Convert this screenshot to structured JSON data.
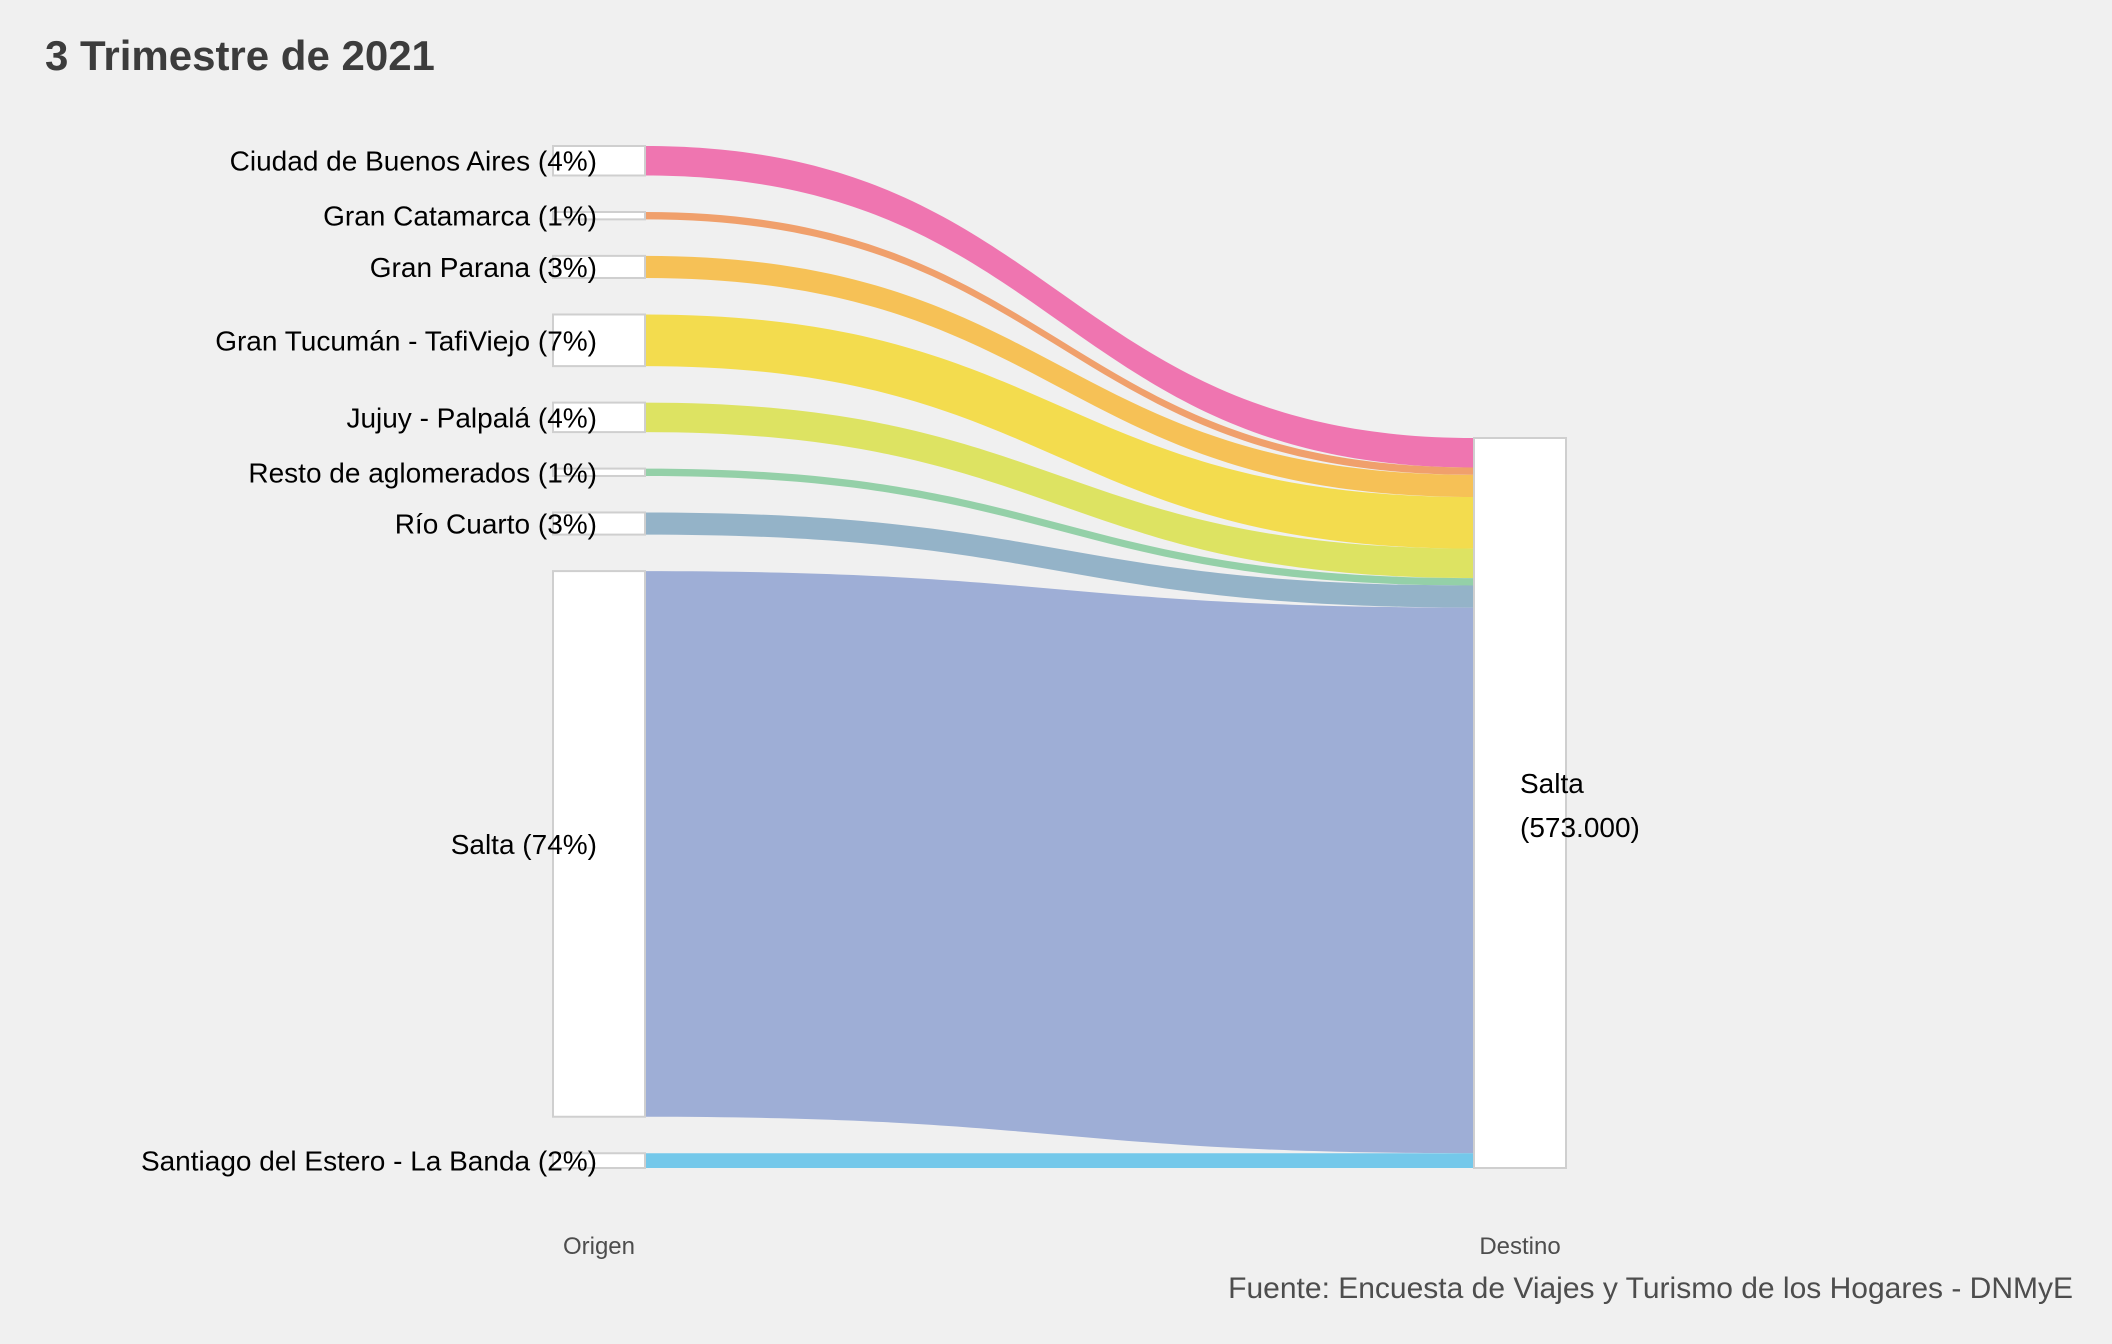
{
  "chart_data": {
    "type": "sankey",
    "title": "3 Trimestre de 2021",
    "caption": "Fuente: Encuesta de Viajes y Turismo de los Hogares - DNMyE",
    "axis_labels": [
      "Origen",
      "Destino"
    ],
    "destination": {
      "name": "Salta",
      "total_label": "(573.000)",
      "total": 573000
    },
    "sources": [
      {
        "name": "Ciudad de Buenos Aires",
        "pct_label": "(4%)",
        "share": 0.04,
        "color": "#ef75b0"
      },
      {
        "name": "Gran Catamarca",
        "pct_label": "(1%)",
        "share": 0.01,
        "color": "#f0a06c"
      },
      {
        "name": "Gran Parana",
        "pct_label": "(3%)",
        "share": 0.03,
        "color": "#f6c156"
      },
      {
        "name": "Gran Tucumán - TafiViejo",
        "pct_label": "(7%)",
        "share": 0.07,
        "color": "#f3dc4e"
      },
      {
        "name": "Jujuy - Palpalá",
        "pct_label": "(4%)",
        "share": 0.04,
        "color": "#dde362"
      },
      {
        "name": "Resto de aglomerados",
        "pct_label": "(1%)",
        "share": 0.01,
        "color": "#94d0a8"
      },
      {
        "name": "Río Cuarto",
        "pct_label": "(3%)",
        "share": 0.03,
        "color": "#94b3c8"
      },
      {
        "name": "Salta",
        "pct_label": "(74%)",
        "share": 0.74,
        "color": "#9eaed6"
      },
      {
        "name": "Santiago del Estero - La Banda",
        "pct_label": "(2%)",
        "share": 0.02,
        "color": "#74c8ea"
      }
    ]
  }
}
